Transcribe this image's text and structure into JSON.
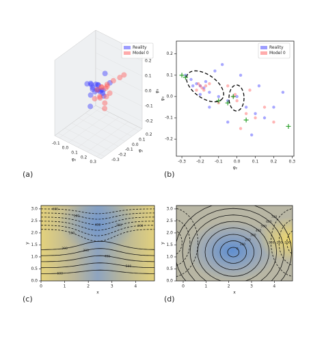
{
  "chart_data": [
    {
      "type": "scatter3d",
      "panel_label": "(a)",
      "xlabel": "φ₂",
      "ylabel": "φ₁",
      "zlabel": "φ₃",
      "xlim": [
        -0.15,
        0.35
      ],
      "ylim": [
        -0.35,
        0.25
      ],
      "zlim": [
        -0.25,
        0.25
      ],
      "xticks": [
        -0.1,
        {
          "value": 0.0,
          "label": "0.0"
        },
        0.1,
        0.2,
        0.3
      ],
      "yticks": [
        -0.3,
        -0.2,
        -0.1,
        {
          "value": 0.0,
          "label": "0.0"
        },
        0.1,
        0.2
      ],
      "zticks": [
        -0.2,
        -0.1,
        {
          "value": 0.0,
          "label": "0.0"
        },
        0.1,
        0.2
      ],
      "legend": "upper right",
      "series": [
        {
          "name": "Reality",
          "color": "#3b3bff",
          "x": [
            0.0,
            0.02,
            0.04,
            0.05,
            0.06,
            0.03,
            0.01,
            0.07,
            0.08,
            -0.02,
            0.05,
            0.1,
            0.0,
            0.04,
            0.12,
            -0.05,
            0.06,
            0.09,
            0.02,
            0.15
          ],
          "y": [
            0.0,
            0.02,
            -0.02,
            0.01,
            0.03,
            -0.04,
            0.05,
            -0.01,
            0.02,
            0.0,
            0.08,
            -0.05,
            -0.08,
            0.1,
            0.0,
            0.04,
            -0.1,
            0.06,
            -0.06,
            0.05
          ],
          "z": [
            0.0,
            0.02,
            -0.01,
            0.03,
            -0.02,
            0.01,
            -0.03,
            0.04,
            0.0,
            0.02,
            -0.05,
            0.03,
            0.05,
            -0.04,
            -0.02,
            -0.08,
            0.07,
            0.1,
            -0.1,
            0.06
          ]
        },
        {
          "name": "Model 0",
          "color": "#ff5a5a",
          "x": [
            0.05,
            0.08,
            0.1,
            0.12,
            0.15,
            0.18,
            0.2,
            0.22,
            0.06,
            0.09,
            0.14,
            0.25,
            0.11,
            0.17,
            0.07,
            0.13
          ],
          "y": [
            0.0,
            0.02,
            -0.03,
            0.05,
            0.01,
            0.06,
            -0.02,
            0.1,
            -0.05,
            0.08,
            -0.08,
            0.12,
            0.03,
            -0.04,
            0.04,
            0.0
          ],
          "z": [
            0.0,
            0.02,
            -0.02,
            0.04,
            0.05,
            0.08,
            0.03,
            0.1,
            -0.04,
            -0.06,
            0.0,
            0.12,
            -0.08,
            0.06,
            0.01,
            -0.1
          ]
        }
      ]
    },
    {
      "type": "scatter",
      "panel_label": "(b)",
      "xlabel": "φ₂",
      "ylabel": "φ₃",
      "xlim": [
        -0.33,
        0.31
      ],
      "ylim": [
        -0.28,
        0.26
      ],
      "xticks": [
        -0.3,
        -0.2,
        -0.1,
        {
          "value": 0.0,
          "label": "0.0"
        },
        0.1,
        0.2,
        0.3
      ],
      "yticks": [
        -0.2,
        -0.1,
        {
          "value": 0.0,
          "label": "0.0"
        },
        0.1,
        0.2
      ],
      "legend": "upper right",
      "series": [
        {
          "name": "Reality",
          "color": "#3b3bff",
          "x": [
            -0.25,
            -0.22,
            -0.2,
            -0.18,
            -0.15,
            -0.1,
            -0.05,
            0.0,
            0.05,
            0.1,
            0.15,
            0.2,
            -0.28,
            -0.12,
            -0.08,
            0.02,
            -0.15,
            0.12,
            0.25,
            -0.05,
            0.08,
            -0.2,
            -0.24,
            -0.17
          ],
          "y": [
            0.08,
            0.06,
            0.05,
            0.04,
            0.02,
            0.0,
            -0.02,
            0.0,
            -0.05,
            -0.08,
            -0.1,
            -0.05,
            0.1,
            0.12,
            0.15,
            0.1,
            -0.05,
            0.05,
            0.02,
            -0.12,
            -0.18,
            0.01,
            0.05,
            0.07
          ]
        },
        {
          "name": "Model 0",
          "color": "#ff5a5a",
          "x": [
            -0.2,
            -0.19,
            -0.17,
            -0.22,
            -0.15,
            -0.02,
            -0.01,
            0.0,
            -0.1,
            0.05,
            0.1,
            0.15,
            0.02,
            -0.05,
            0.2,
            0.07,
            -0.21,
            -0.18
          ],
          "y": [
            0.05,
            0.04,
            0.05,
            0.03,
            0.06,
            0.0,
            0.01,
            -0.02,
            -0.03,
            -0.08,
            -0.1,
            -0.05,
            -0.15,
            0.05,
            -0.12,
            0.03,
            0.06,
            0.03
          ]
        }
      ],
      "markers": {
        "color": "#2ca02c",
        "x": [
          -0.3,
          -0.28,
          -0.1,
          -0.05,
          -0.02,
          0.05,
          0.28
        ],
        "y": [
          0.1,
          0.09,
          -0.02,
          -0.03,
          0.0,
          -0.11,
          -0.14
        ]
      }
    },
    {
      "type": "contour",
      "panel_label": "(c)",
      "xlabel": "x",
      "ylabel": "y",
      "xlim": [
        0,
        4.8
      ],
      "ylim": [
        0,
        3.14
      ],
      "xticks": [
        0,
        1,
        2,
        3,
        4
      ],
      "yticks": [
        {
          "value": 0,
          "label": "0.0"
        },
        0.5,
        {
          "value": 1,
          "label": "1.0"
        },
        1.5,
        {
          "value": 2,
          "label": "2.0"
        },
        2.5,
        {
          "value": 3,
          "label": "3.0"
        }
      ],
      "contours": [
        {
          "level": 600,
          "style": "dashed"
        },
        {
          "level": 500,
          "style": "dashed"
        },
        {
          "level": 400,
          "style": "dashed"
        },
        {
          "level": 300,
          "style": "dashed"
        },
        {
          "level": 200,
          "style": "dashed"
        },
        {
          "level": 100,
          "style": "dashed"
        },
        {
          "level": 200,
          "style": "solid"
        },
        {
          "level": 300,
          "style": "solid"
        },
        {
          "level": 400,
          "style": "solid"
        },
        {
          "level": 500,
          "style": "solid"
        },
        {
          "level": 600,
          "style": "solid"
        }
      ]
    },
    {
      "type": "contour",
      "panel_label": "(d)",
      "xlabel": "x",
      "ylabel": "y",
      "xlim": [
        -0.3,
        4.8
      ],
      "ylim": [
        0,
        3.14
      ],
      "xticks": [
        0,
        1,
        2,
        3,
        4
      ],
      "yticks": [
        {
          "value": 0,
          "label": "0.0"
        },
        0.5,
        {
          "value": 1,
          "label": "1.0"
        },
        1.5,
        {
          "value": 2,
          "label": "2.0"
        },
        2.5,
        {
          "value": 3,
          "label": "3.0"
        }
      ],
      "contours": [
        {
          "level": 0,
          "style": "solid"
        },
        {
          "level": 100,
          "style": "solid"
        },
        {
          "level": 200,
          "style": "solid"
        },
        {
          "level": 300,
          "style": "solid"
        },
        {
          "level": 400,
          "style": "solid"
        },
        {
          "level": 500,
          "style": "solid"
        },
        {
          "level": 600,
          "style": "solid"
        },
        {
          "level": 700,
          "style": "solid"
        },
        {
          "level": -100,
          "style": "dashed"
        },
        {
          "level": -200,
          "style": "dashed"
        },
        {
          "level": -300,
          "style": "dashed"
        }
      ]
    }
  ]
}
